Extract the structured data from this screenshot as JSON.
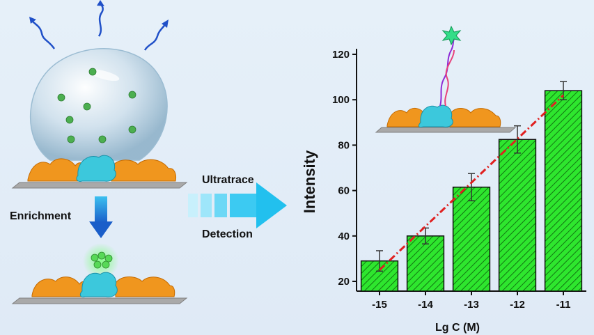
{
  "labels": {
    "enrichment": "Enrichment",
    "ultratrace": "Ultratrace",
    "detection": "Detection"
  },
  "colors": {
    "bar_fill": "#2ee62e",
    "regression_line": "#e02020",
    "arrow": "#33ccee",
    "protein": "#f0961e",
    "receptor": "#3cc8dc",
    "droplet_dot": "#4caf50"
  },
  "chart_data": {
    "type": "bar",
    "title": "",
    "xlabel": "Lg C (M)",
    "ylabel": "Intensity",
    "categories": [
      "-15",
      "-14",
      "-13",
      "-12",
      "-11"
    ],
    "values": [
      29,
      40,
      61.5,
      82.5,
      104
    ],
    "errors": [
      4.5,
      3.5,
      6,
      6,
      4
    ],
    "fit_line": {
      "x_start": "-15",
      "y_start": 25,
      "x_end": "-11",
      "y_end": 102
    },
    "ylim": [
      20,
      120
    ],
    "yticks": [
      20,
      40,
      60,
      80,
      100,
      120
    ],
    "bar_pattern": "diagonal-hatch"
  }
}
